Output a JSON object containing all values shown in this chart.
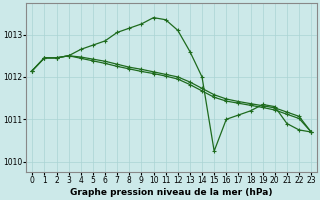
{
  "xlabel": "Graphe pression niveau de la mer (hPa)",
  "xlim": [
    -0.5,
    23.5
  ],
  "ylim": [
    1009.75,
    1013.75
  ],
  "yticks": [
    1010,
    1011,
    1012,
    1013
  ],
  "xticks": [
    0,
    1,
    2,
    3,
    4,
    5,
    6,
    7,
    8,
    9,
    10,
    11,
    12,
    13,
    14,
    15,
    16,
    17,
    18,
    19,
    20,
    21,
    22,
    23
  ],
  "background_color": "#cce9e9",
  "grid_color": "#aad4d4",
  "line_color": "#1e6b1e",
  "line1_x": [
    0,
    1,
    2,
    3,
    4,
    5,
    6,
    7,
    8,
    9,
    10,
    11,
    12,
    13,
    14,
    15,
    16,
    17,
    18,
    19,
    20,
    21,
    22,
    23
  ],
  "line1_y": [
    1012.15,
    1012.45,
    1012.45,
    1012.5,
    1012.65,
    1012.75,
    1012.85,
    1013.05,
    1013.15,
    1013.25,
    1013.4,
    1013.35,
    1013.1,
    1012.6,
    1012.0,
    1010.25,
    1011.0,
    1011.1,
    1011.2,
    1011.35,
    1011.3,
    1010.9,
    1010.75,
    1010.7
  ],
  "line2_x": [
    0,
    1,
    2,
    3,
    4,
    5,
    6,
    7,
    8,
    9,
    10,
    11,
    12,
    13,
    14,
    15,
    16,
    17,
    18,
    19,
    20,
    21,
    22,
    23
  ],
  "line2_y": [
    1012.15,
    1012.45,
    1012.45,
    1012.5,
    1012.47,
    1012.42,
    1012.37,
    1012.3,
    1012.23,
    1012.18,
    1012.12,
    1012.06,
    1012.0,
    1011.88,
    1011.73,
    1011.58,
    1011.48,
    1011.42,
    1011.37,
    1011.32,
    1011.27,
    1011.17,
    1011.07,
    1010.7
  ],
  "line3_x": [
    0,
    1,
    2,
    3,
    4,
    5,
    6,
    7,
    8,
    9,
    10,
    11,
    12,
    13,
    14,
    15,
    16,
    17,
    18,
    19,
    20,
    21,
    22,
    23
  ],
  "line3_y": [
    1012.15,
    1012.45,
    1012.45,
    1012.5,
    1012.44,
    1012.38,
    1012.32,
    1012.25,
    1012.19,
    1012.13,
    1012.08,
    1012.02,
    1011.95,
    1011.82,
    1011.67,
    1011.52,
    1011.43,
    1011.38,
    1011.33,
    1011.28,
    1011.22,
    1011.12,
    1011.02,
    1010.7
  ],
  "marker": "+",
  "marker_size": 3.5,
  "linewidth": 0.9,
  "tick_fontsize": 5.5,
  "label_fontsize": 6.5
}
